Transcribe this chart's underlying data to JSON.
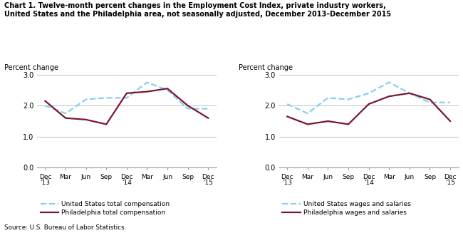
{
  "title_line1": "Chart 1. Twelve-month percent changes in the Employment Cost Index, private industry workers,",
  "title_line2": "United States and the Philadelphia area, not seasonally adjusted, December 2013–December 2015",
  "source": "Source: U.S. Bureau of Labor Statistics.",
  "ylabel": "Percent change",
  "xlabels": [
    "Dec\n'13",
    "Mar",
    "Jun",
    "Sep",
    "Dec\n'14",
    "Mar",
    "Jun",
    "Sep",
    "Dec\n'15"
  ],
  "ylim": [
    0.0,
    3.0
  ],
  "yticks": [
    0.0,
    1.0,
    2.0,
    3.0
  ],
  "chart1": {
    "us_total_comp": [
      2.0,
      1.75,
      2.2,
      2.25,
      2.25,
      2.75,
      2.5,
      1.9,
      1.9
    ],
    "philly_total_comp": [
      2.15,
      1.6,
      1.55,
      1.4,
      2.4,
      2.45,
      2.55,
      2.0,
      1.6
    ],
    "legend1": "United States total compensation",
    "legend2": "Philadelphia total compensation"
  },
  "chart2": {
    "us_wages_sal": [
      2.05,
      1.75,
      2.25,
      2.2,
      2.4,
      2.75,
      2.4,
      2.1,
      2.1
    ],
    "philly_wages_sal": [
      1.65,
      1.4,
      1.5,
      1.4,
      2.05,
      2.3,
      2.4,
      2.2,
      1.5
    ],
    "legend1": "United States wages and salaries",
    "legend2": "Philadelphia wages and salaries"
  },
  "us_color": "#89CFF0",
  "us_linestyle": "--",
  "philly_color": "#7B1535",
  "philly_linestyle": "-",
  "linewidth": 1.6,
  "grid_color": "#c0c0c0",
  "background_color": "#ffffff"
}
